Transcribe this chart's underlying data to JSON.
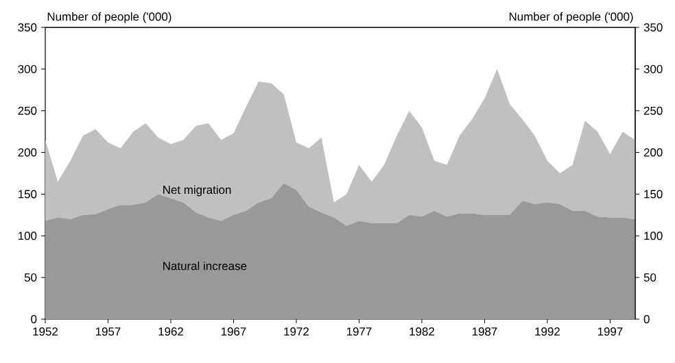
{
  "chart_data": {
    "type": "area",
    "stacked": true,
    "ylabel": "Number of people ('000)",
    "y2label": "Number of people ('000)",
    "x": [
      1952,
      1953,
      1954,
      1955,
      1956,
      1957,
      1958,
      1959,
      1960,
      1961,
      1962,
      1963,
      1964,
      1965,
      1966,
      1967,
      1968,
      1969,
      1970,
      1971,
      1972,
      1973,
      1974,
      1975,
      1976,
      1977,
      1978,
      1979,
      1980,
      1981,
      1982,
      1983,
      1984,
      1985,
      1986,
      1987,
      1988,
      1989,
      1990,
      1991,
      1992,
      1993,
      1994,
      1995,
      1996,
      1997,
      1998,
      1999
    ],
    "xlim": [
      1952,
      1999
    ],
    "xticks": [
      1952,
      1957,
      1962,
      1967,
      1972,
      1977,
      1982,
      1987,
      1992,
      1997
    ],
    "ylim": [
      0,
      350
    ],
    "yticks": [
      0,
      50,
      100,
      150,
      200,
      250,
      300,
      350
    ],
    "y2lim": [
      0,
      350
    ],
    "y2ticks": [
      0,
      50,
      100,
      150,
      200,
      250,
      300,
      350
    ],
    "series": [
      {
        "name": "Natural increase",
        "color": "#999999",
        "values": [
          118,
          122,
          120,
          125,
          126,
          132,
          137,
          137,
          140,
          150,
          145,
          140,
          128,
          122,
          118,
          125,
          130,
          140,
          145,
          163,
          155,
          135,
          128,
          122,
          112,
          118,
          115,
          115,
          115,
          125,
          123,
          130,
          123,
          127,
          127,
          125,
          125,
          125,
          142,
          138,
          140,
          138,
          130,
          130,
          123,
          122,
          122,
          120
        ]
      },
      {
        "name": "Net migration",
        "color": "#c0c0c0",
        "values": [
          97,
          43,
          70,
          95,
          102,
          80,
          68,
          88,
          95,
          68,
          65,
          75,
          104,
          113,
          97,
          98,
          125,
          145,
          138,
          107,
          57,
          70,
          90,
          18,
          38,
          67,
          50,
          70,
          105,
          125,
          107,
          60,
          62,
          93,
          113,
          140,
          175,
          133,
          98,
          82,
          50,
          37,
          55,
          108,
          102,
          76,
          103,
          95
        ]
      }
    ]
  }
}
